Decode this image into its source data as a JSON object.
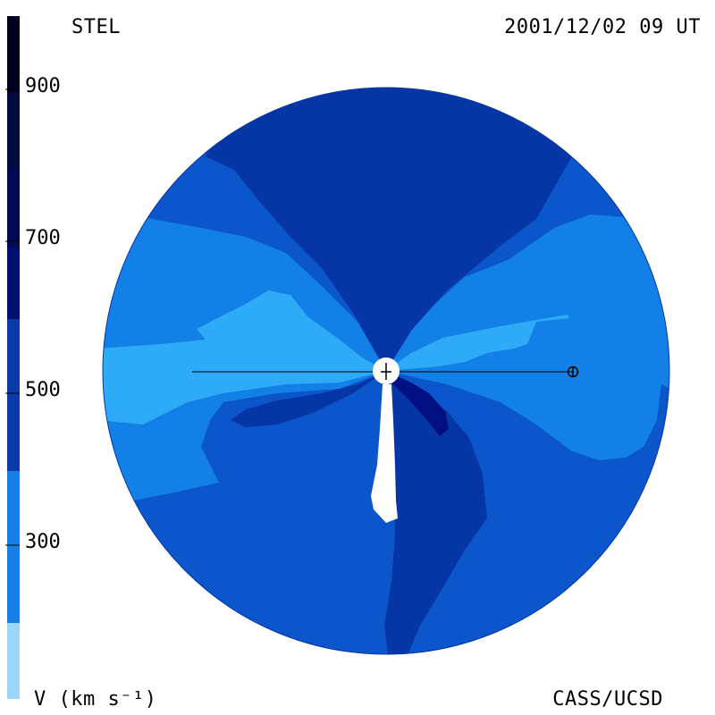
{
  "header": {
    "source": "STEL",
    "timestamp": "2001/12/02 09 UT"
  },
  "footer": {
    "units_label": "V (km s⁻¹)",
    "credit": "CASS/UCSD"
  },
  "colorbar": {
    "tick_labels": [
      "900",
      "700",
      "500",
      "300"
    ],
    "bands": [
      "#000020",
      "#000c40",
      "#001070",
      "#0a2da0",
      "#0c50cc",
      "#1280e6",
      "#2eabf6",
      "#9dd5fb"
    ]
  },
  "palette": {
    "v_300": "#2eabf6",
    "v_400": "#1280e6",
    "v_500": "#0c56cc",
    "v_600": "#0635a5",
    "v_700": "#001080",
    "sun": "#ffffff",
    "outline": "#000000"
  },
  "markers": {
    "sun": "sun",
    "earth": "earth-symbol"
  }
}
